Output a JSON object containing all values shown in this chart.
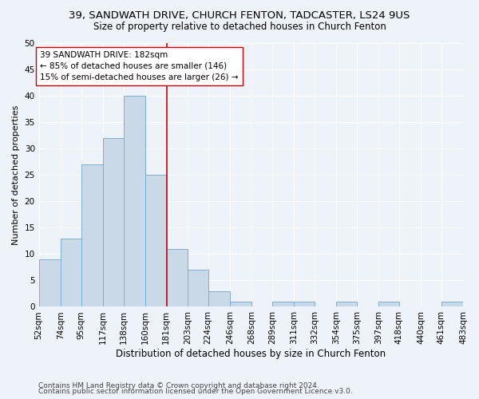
{
  "title1": "39, SANDWATH DRIVE, CHURCH FENTON, TADCASTER, LS24 9US",
  "title2": "Size of property relative to detached houses in Church Fenton",
  "xlabel": "Distribution of detached houses by size in Church Fenton",
  "ylabel": "Number of detached properties",
  "footnote1": "Contains HM Land Registry data © Crown copyright and database right 2024.",
  "footnote2": "Contains public sector information licensed under the Open Government Licence v3.0.",
  "bins": [
    52,
    74,
    95,
    117,
    138,
    160,
    181,
    203,
    224,
    246,
    268,
    289,
    311,
    332,
    354,
    375,
    397,
    418,
    440,
    461,
    483
  ],
  "counts": [
    9,
    13,
    27,
    32,
    40,
    25,
    11,
    7,
    3,
    1,
    0,
    1,
    1,
    0,
    1,
    0,
    1,
    0,
    0,
    1
  ],
  "bar_color": "#c9d9e8",
  "bar_edgecolor": "#7bafd4",
  "property_size": 182,
  "vline_color": "#cc0000",
  "annotation_line1": "39 SANDWATH DRIVE: 182sqm",
  "annotation_line2": "← 85% of detached houses are smaller (146)",
  "annotation_line3": "15% of semi-detached houses are larger (26) →",
  "annotation_box_edgecolor": "#cc0000",
  "annotation_box_facecolor": "#ffffff",
  "ylim": [
    0,
    50
  ],
  "yticks": [
    0,
    5,
    10,
    15,
    20,
    25,
    30,
    35,
    40,
    45,
    50
  ],
  "bg_color": "#eef2f9",
  "plot_bg_color": "#eef2f9",
  "grid_color": "#ffffff",
  "title1_fontsize": 9.5,
  "title2_fontsize": 8.5,
  "xlabel_fontsize": 8.5,
  "ylabel_fontsize": 8,
  "tick_fontsize": 7.5,
  "annotation_fontsize": 7.5,
  "footnote_fontsize": 6.5
}
